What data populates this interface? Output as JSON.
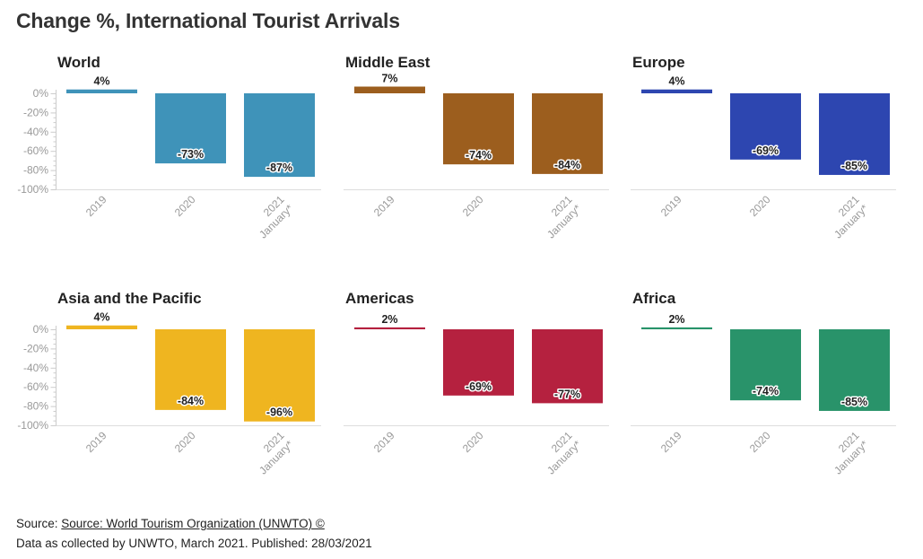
{
  "title": "Change %, International Tourist Arrivals",
  "footer": {
    "source_prefix": "Source: ",
    "source_link": "Source: World Tourism Organization (UNWTO) ©",
    "note": "Data as collected by UNWTO, March 2021. Published: 28/03/2021"
  },
  "chart_data": [
    {
      "type": "bar",
      "title": "World",
      "color": "#3f93b9",
      "categories": [
        "2019",
        "2020",
        "2021 January*"
      ],
      "values": [
        4,
        -73,
        -87
      ],
      "labels": [
        "4%",
        "-73%",
        "-87%"
      ],
      "ylim": [
        -100,
        4
      ],
      "yticks": [
        "0%",
        "-20%",
        "-40%",
        "-60%",
        "-80%",
        "-100%"
      ]
    },
    {
      "type": "bar",
      "title": "Middle East",
      "color": "#9c5e1e",
      "categories": [
        "2019",
        "2020",
        "2021 January*"
      ],
      "values": [
        7,
        -74,
        -84
      ],
      "labels": [
        "7%",
        "-74%",
        "-84%"
      ],
      "ylim": [
        -100,
        7
      ]
    },
    {
      "type": "bar",
      "title": "Europe",
      "color": "#2d46b0",
      "categories": [
        "2019",
        "2020",
        "2021 January*"
      ],
      "values": [
        4,
        -69,
        -85
      ],
      "labels": [
        "4%",
        "-69%",
        "-85%"
      ],
      "ylim": [
        -100,
        4
      ]
    },
    {
      "type": "bar",
      "title": "Asia and the Pacific",
      "color": "#efb520",
      "categories": [
        "2019",
        "2020",
        "2021 January*"
      ],
      "values": [
        4,
        -84,
        -96
      ],
      "labels": [
        "4%",
        "-84%",
        "-96%"
      ],
      "ylim": [
        -100,
        4
      ],
      "yticks": [
        "0%",
        "-20%",
        "-40%",
        "-60%",
        "-80%",
        "-100%"
      ]
    },
    {
      "type": "bar",
      "title": "Americas",
      "color": "#b5213f",
      "categories": [
        "2019",
        "2020",
        "2021 January*"
      ],
      "values": [
        2,
        -69,
        -77
      ],
      "labels": [
        "2%",
        "-69%",
        "-77%"
      ],
      "ylim": [
        -100,
        2
      ]
    },
    {
      "type": "bar",
      "title": "Africa",
      "color": "#29936a",
      "categories": [
        "2019",
        "2020",
        "2021 January*"
      ],
      "values": [
        2,
        -74,
        -85
      ],
      "labels": [
        "2%",
        "-74%",
        "-85%"
      ],
      "ylim": [
        -100,
        2
      ]
    }
  ]
}
